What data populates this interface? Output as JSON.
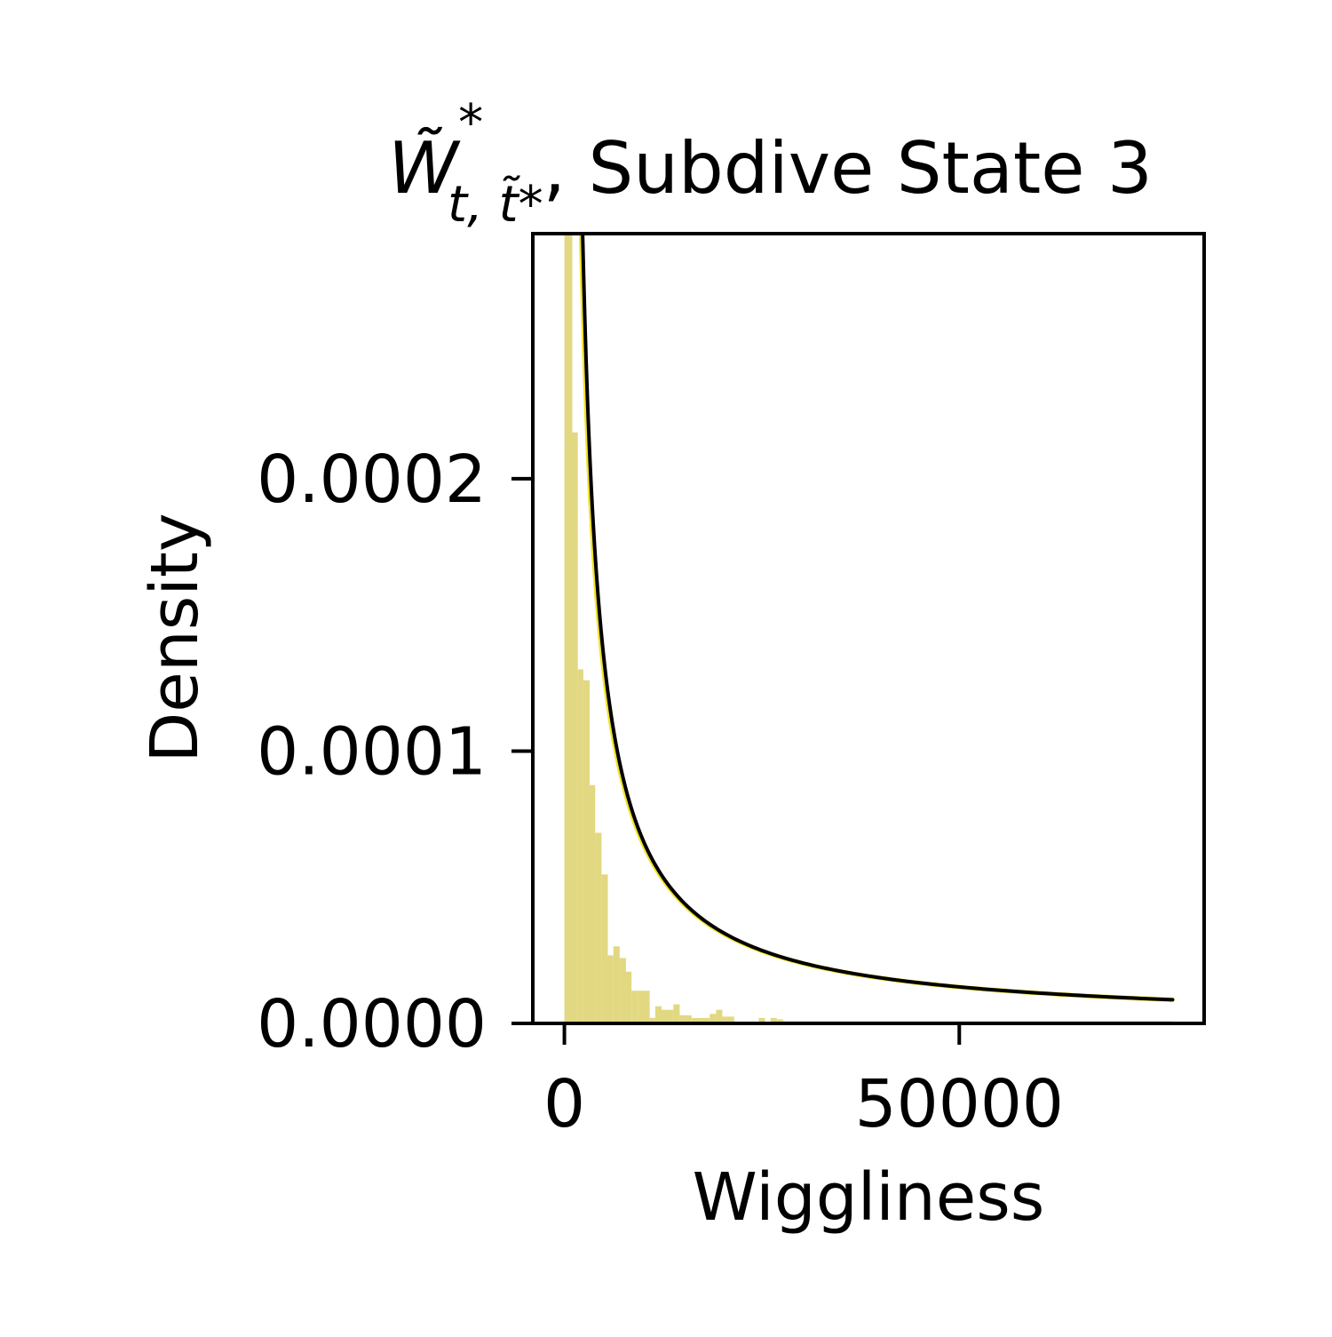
{
  "chart_data": {
    "type": "bar",
    "title": {
      "symbol": "W̃",
      "superscript": "*",
      "subscript": "t, t̃*",
      "text": ", Subdive State 3"
    },
    "xlabel": "Wiggliness",
    "ylabel": "Density",
    "xlim": [
      -4000,
      81000
    ],
    "ylim": [
      0,
      0.00029
    ],
    "x_ticks": [
      0,
      50000
    ],
    "x_tick_labels": [
      "0",
      "50000"
    ],
    "y_ticks": [
      0,
      0.0001,
      0.0002
    ],
    "y_tick_labels": [
      "0.0000",
      "0.0001",
      "0.0002"
    ],
    "grid": false,
    "histogram": {
      "color": "#e2d882",
      "bins": [
        {
          "x0": 0,
          "x1": 1000,
          "density": 0.00029
        },
        {
          "x0": 1000,
          "x1": 1700,
          "density": 0.000217
        },
        {
          "x0": 1700,
          "x1": 2400,
          "density": 0.00013
        },
        {
          "x0": 2400,
          "x1": 3200,
          "density": 0.000126
        },
        {
          "x0": 3200,
          "x1": 3900,
          "density": 8.75e-05
        },
        {
          "x0": 3900,
          "x1": 4700,
          "density": 7e-05
        },
        {
          "x0": 4700,
          "x1": 5500,
          "density": 5.47e-05
        },
        {
          "x0": 5500,
          "x1": 6200,
          "density": 2.5e-05
        },
        {
          "x0": 6200,
          "x1": 7000,
          "density": 2.83e-05
        },
        {
          "x0": 7000,
          "x1": 7800,
          "density": 2.4e-05
        },
        {
          "x0": 7800,
          "x1": 8500,
          "density": 1.9e-05
        },
        {
          "x0": 8500,
          "x1": 9300,
          "density": 1.2e-05
        },
        {
          "x0": 9300,
          "x1": 10800,
          "density": 1.2e-05
        },
        {
          "x0": 10800,
          "x1": 11500,
          "density": 2e-06
        },
        {
          "x0": 11500,
          "x1": 12300,
          "density": 6.3e-06
        },
        {
          "x0": 12300,
          "x1": 13800,
          "density": 5e-06
        },
        {
          "x0": 13800,
          "x1": 14600,
          "density": 7e-06
        },
        {
          "x0": 14600,
          "x1": 16100,
          "density": 3e-06
        },
        {
          "x0": 16100,
          "x1": 18400,
          "density": 2e-06
        },
        {
          "x0": 18400,
          "x1": 19200,
          "density": 3.5e-06
        },
        {
          "x0": 19200,
          "x1": 20000,
          "density": 5e-06
        },
        {
          "x0": 20000,
          "x1": 21500,
          "density": 2.5e-06
        },
        {
          "x0": 24600,
          "x1": 25400,
          "density": 2e-06
        },
        {
          "x0": 26100,
          "x1": 26900,
          "density": 2e-06
        },
        {
          "x0": 26900,
          "x1": 27700,
          "density": 1.5e-06
        },
        {
          "x0": 27700,
          "x1": 77000,
          "density": 8e-07
        }
      ]
    },
    "curves": [
      {
        "style": "fit-highlight",
        "color": "#f1e229",
        "width": 5,
        "c": 0.67,
        "x_min": 20,
        "x_max": 77000,
        "shift": 200
      },
      {
        "style": "fit",
        "color": "#000000",
        "width": 4,
        "c": 0.67,
        "x_min": 20,
        "x_max": 77000,
        "shift": 0
      }
    ]
  }
}
